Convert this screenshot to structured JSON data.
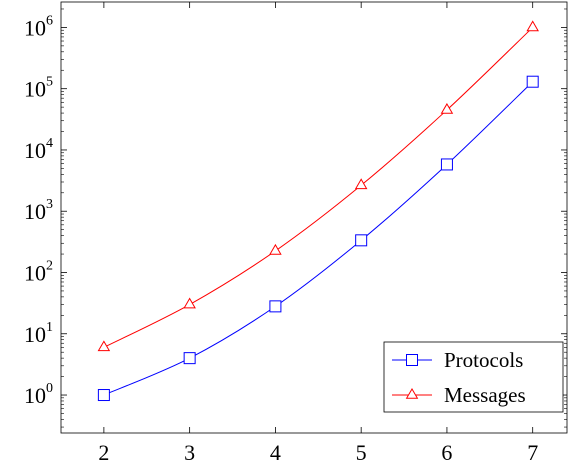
{
  "chart_data": {
    "type": "line",
    "title": "",
    "xlabel": "",
    "ylabel": "",
    "x": [
      2,
      3,
      4,
      5,
      6,
      7
    ],
    "xlim": [
      1.5,
      7.4
    ],
    "ylim": [
      0.24,
      2600000
    ],
    "yscale": "log",
    "xticks": [
      {
        "value": 2,
        "label": "2"
      },
      {
        "value": 3,
        "label": "3"
      },
      {
        "value": 4,
        "label": "4"
      },
      {
        "value": 5,
        "label": "5"
      },
      {
        "value": 6,
        "label": "6"
      },
      {
        "value": 7,
        "label": "7"
      }
    ],
    "yticks": [
      {
        "value": 1,
        "base": "10",
        "exp": "0"
      },
      {
        "value": 10,
        "base": "10",
        "exp": "1"
      },
      {
        "value": 100,
        "base": "10",
        "exp": "2"
      },
      {
        "value": 1000,
        "base": "10",
        "exp": "3"
      },
      {
        "value": 10000,
        "base": "10",
        "exp": "4"
      },
      {
        "value": 100000,
        "base": "10",
        "exp": "5"
      },
      {
        "value": 1000000,
        "base": "10",
        "exp": "6"
      }
    ],
    "grid": false,
    "legend_position": "bottom-right",
    "series": [
      {
        "name": "Protocols",
        "color": "#0000ff",
        "marker": "square",
        "values": [
          1,
          4,
          28,
          335,
          5800,
          130000
        ]
      },
      {
        "name": "Messages",
        "color": "#ff0000",
        "marker": "triangle",
        "values": [
          6,
          30,
          225,
          2650,
          45000,
          1000000
        ]
      }
    ]
  }
}
